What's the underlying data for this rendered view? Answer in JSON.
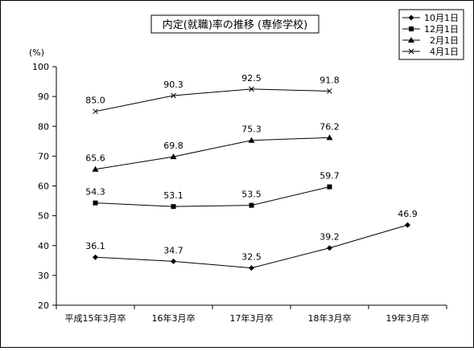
{
  "chart_data": {
    "type": "line",
    "title": "内定(就職)率の推移 (専修学校)",
    "ylabel": "(%)",
    "xlabel": "",
    "ylim": [
      20,
      100
    ],
    "ytick_step": 10,
    "grid": false,
    "legend_position": "top-right",
    "categories": [
      "平成15年3月卒",
      "16年3月卒",
      "17年3月卒",
      "18年3月卒",
      "19年3月卒"
    ],
    "series": [
      {
        "name": "10月1日",
        "marker": "diamond",
        "values": [
          36.1,
          34.7,
          32.5,
          39.2,
          46.9
        ],
        "labels": [
          "36.1",
          "34.7",
          "32.5",
          "39.2",
          "46.9"
        ]
      },
      {
        "name": "12月1日",
        "marker": "square",
        "values": [
          54.3,
          53.1,
          53.5,
          59.7,
          null
        ],
        "labels": [
          "54.3",
          "53.1",
          "53.5",
          "59.7",
          ""
        ]
      },
      {
        "name": "2月1日",
        "marker": "triangle",
        "values": [
          65.6,
          69.8,
          75.3,
          76.2,
          null
        ],
        "labels": [
          "65.6",
          "69.8",
          "75.3",
          "76.2",
          ""
        ]
      },
      {
        "name": "4月1日",
        "marker": "x",
        "values": [
          85.0,
          90.3,
          92.5,
          91.8,
          null
        ],
        "labels": [
          "85.0",
          "90.3",
          "92.5",
          "91.8",
          ""
        ]
      }
    ],
    "colors": {
      "line": "#000000",
      "background": "#ffffff"
    }
  }
}
